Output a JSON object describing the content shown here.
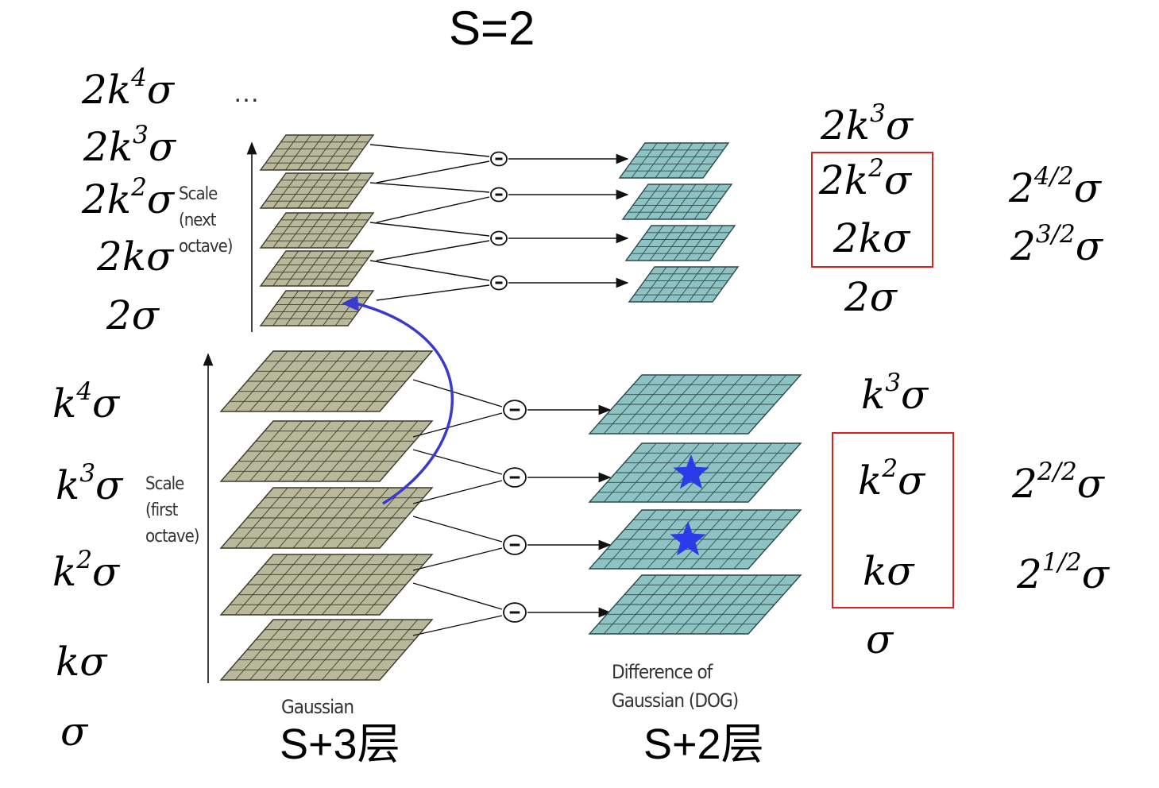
{
  "title": "S=2",
  "ellipsis": "…",
  "gaussian_caption": "Gaussian",
  "dog_caption_line1": "Difference of",
  "dog_caption_line2": "Gaussian (DOG)",
  "gaussian_layers": "S+3层",
  "dog_layers": "S+2层",
  "axis_first": {
    "l1": "Scale",
    "l2": "(first",
    "l3": "octave)"
  },
  "axis_next": {
    "l1": "Scale",
    "l2": "(next",
    "l3": "octave)"
  },
  "minus_symbol": "−",
  "left_next": [
    {
      "base": "2k",
      "sup": "4",
      "tail": "σ"
    },
    {
      "base": "2k",
      "sup": "3",
      "tail": "σ"
    },
    {
      "base": "2k",
      "sup": "2",
      "tail": "σ"
    },
    {
      "base": "2kσ",
      "sup": "",
      "tail": ""
    },
    {
      "base": "2σ",
      "sup": "",
      "tail": ""
    }
  ],
  "left_first": [
    {
      "base": "k",
      "sup": "4",
      "tail": "σ"
    },
    {
      "base": "k",
      "sup": "3",
      "tail": "σ"
    },
    {
      "base": "k",
      "sup": "2",
      "tail": "σ"
    },
    {
      "base": "kσ",
      "sup": "",
      "tail": ""
    },
    {
      "base": "σ",
      "sup": "",
      "tail": ""
    }
  ],
  "right_next": [
    {
      "base": "2k",
      "sup": "3",
      "tail": "σ"
    },
    {
      "base": "2k",
      "sup": "2",
      "tail": "σ"
    },
    {
      "base": "2kσ",
      "sup": "",
      "tail": ""
    },
    {
      "base": "2σ",
      "sup": "",
      "tail": ""
    }
  ],
  "right_first": [
    {
      "base": "k",
      "sup": "3",
      "tail": "σ"
    },
    {
      "base": "k",
      "sup": "2",
      "tail": "σ"
    },
    {
      "base": "kσ",
      "sup": "",
      "tail": ""
    },
    {
      "base": "σ",
      "sup": "",
      "tail": ""
    }
  ],
  "pow_next": [
    {
      "base": "2",
      "sup": "4/2",
      "tail": "σ"
    },
    {
      "base": "2",
      "sup": "3/2",
      "tail": "σ"
    }
  ],
  "pow_first": [
    {
      "base": "2",
      "sup": "2/2",
      "tail": "σ"
    },
    {
      "base": "2",
      "sup": "1/2",
      "tail": "σ"
    }
  ],
  "colors": {
    "gaussian_fill": "#b8b89a",
    "gaussian_grid": "#3a3a2a",
    "dog_fill": "#8fc3c3",
    "dog_grid": "#2a4a4a",
    "highlight_box": "#e02020",
    "curve": "#3a3acc",
    "star": "#2b3be8"
  }
}
